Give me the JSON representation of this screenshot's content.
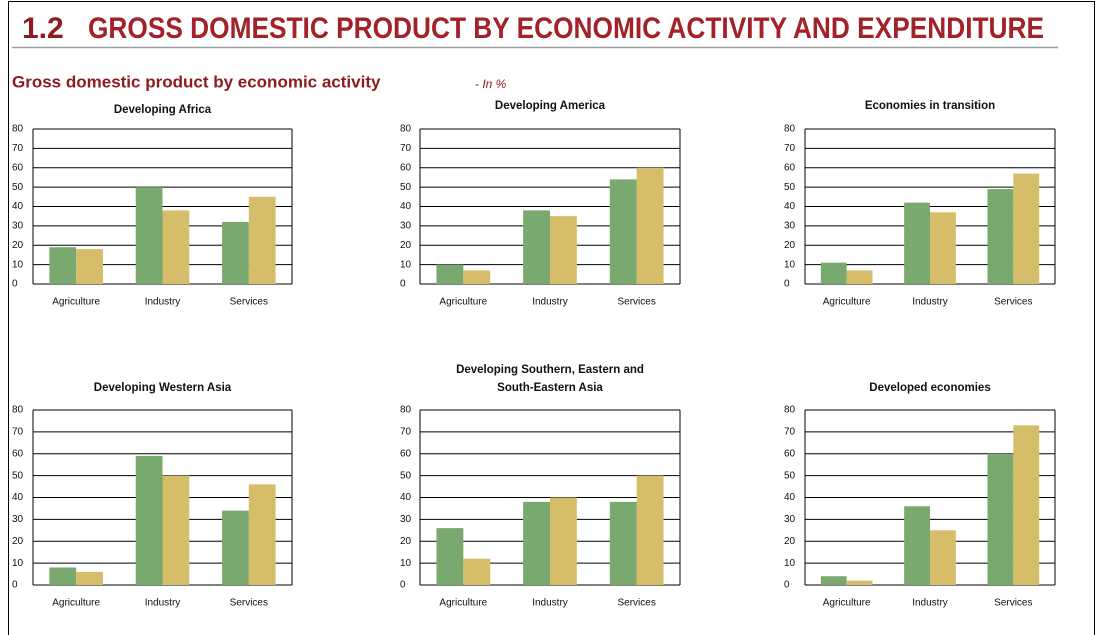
{
  "header": {
    "section": "1.2",
    "title": "GROSS DOMESTIC PRODUCT BY ECONOMIC ACTIVITY AND EXPENDITURE",
    "subtitle": "Gross domestic product by economic activity",
    "unit": "- In %"
  },
  "chart_data": [
    {
      "type": "bar",
      "title": [
        "Developing Africa"
      ],
      "categories": [
        "Agriculture",
        "Industry",
        "Services"
      ],
      "series": [
        {
          "color": "#79a96e",
          "values": [
            19,
            50,
            32
          ]
        },
        {
          "color": "#d5bd6a",
          "values": [
            18,
            38,
            45
          ]
        }
      ],
      "ylim": [
        0,
        80
      ],
      "yticks": [
        0,
        10,
        20,
        30,
        40,
        50,
        60,
        70,
        80
      ],
      "grid": true
    },
    {
      "type": "bar",
      "title": [
        "Developing America"
      ],
      "categories": [
        "Agriculture",
        "Industry",
        "Services"
      ],
      "series": [
        {
          "color": "#79a96e",
          "values": [
            10,
            38,
            54
          ]
        },
        {
          "color": "#d5bd6a",
          "values": [
            7,
            35,
            60
          ]
        }
      ],
      "ylim": [
        0,
        80
      ],
      "yticks": [
        0,
        10,
        20,
        30,
        40,
        50,
        60,
        70,
        80
      ],
      "grid": true
    },
    {
      "type": "bar",
      "title": [
        "Economies in transition"
      ],
      "categories": [
        "Agriculture",
        "Industry",
        "Services"
      ],
      "series": [
        {
          "color": "#79a96e",
          "values": [
            11,
            42,
            49
          ]
        },
        {
          "color": "#d5bd6a",
          "values": [
            7,
            37,
            57
          ]
        }
      ],
      "ylim": [
        0,
        80
      ],
      "yticks": [
        0,
        10,
        20,
        30,
        40,
        50,
        60,
        70,
        80
      ],
      "grid": true
    },
    {
      "type": "bar",
      "title": [
        "Developing Western Asia"
      ],
      "categories": [
        "Agriculture",
        "Industry",
        "Services"
      ],
      "series": [
        {
          "color": "#79a96e",
          "values": [
            8,
            59,
            34
          ]
        },
        {
          "color": "#d5bd6a",
          "values": [
            6,
            50,
            46
          ]
        }
      ],
      "ylim": [
        0,
        80
      ],
      "yticks": [
        0,
        10,
        20,
        30,
        40,
        50,
        60,
        70,
        80
      ],
      "grid": true
    },
    {
      "type": "bar",
      "title": [
        "Developing Southern, Eastern and",
        "South-Eastern Asia"
      ],
      "categories": [
        "Agriculture",
        "Industry",
        "Services"
      ],
      "series": [
        {
          "color": "#79a96e",
          "values": [
            26,
            38,
            38
          ]
        },
        {
          "color": "#d5bd6a",
          "values": [
            12,
            40,
            50
          ]
        }
      ],
      "ylim": [
        0,
        80
      ],
      "yticks": [
        0,
        10,
        20,
        30,
        40,
        50,
        60,
        70,
        80
      ],
      "grid": true
    },
    {
      "type": "bar",
      "title": [
        "Developed economies"
      ],
      "categories": [
        "Agriculture",
        "Industry",
        "Services"
      ],
      "series": [
        {
          "color": "#79a96e",
          "values": [
            4,
            36,
            60
          ]
        },
        {
          "color": "#d5bd6a",
          "values": [
            2,
            25,
            73
          ]
        }
      ],
      "ylim": [
        0,
        80
      ],
      "yticks": [
        0,
        10,
        20,
        30,
        40,
        50,
        60,
        70,
        80
      ],
      "grid": true
    }
  ]
}
